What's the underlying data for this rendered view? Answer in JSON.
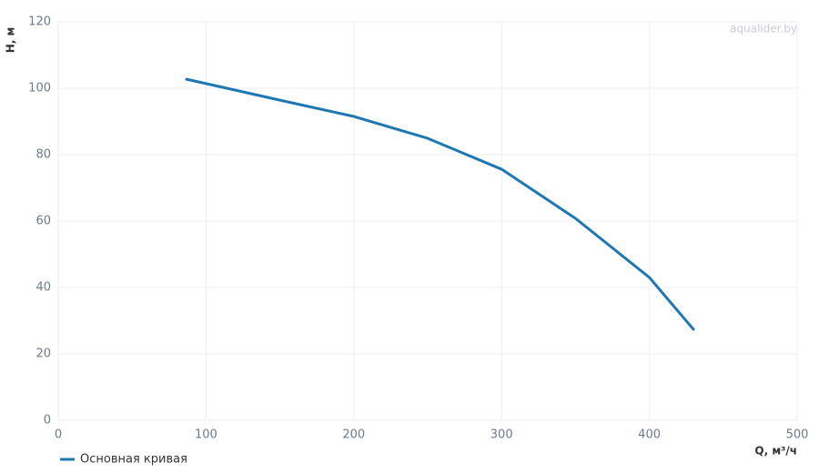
{
  "chart_data": {
    "type": "line",
    "watermark": "aqualider.by",
    "x_label": "Q, м³/ч",
    "y_label": "H, м",
    "x": [
      86.8,
      100,
      150,
      200,
      250,
      300,
      350,
      400,
      429.8
    ],
    "series": [
      {
        "name": "Основная кривая",
        "color": "#1f77b4",
        "values": [
          102.7,
          101.4,
          96.4,
          91.5,
          84.9,
          75.6,
          60.8,
          43.0,
          27.4
        ]
      }
    ],
    "xlim": [
      0,
      500
    ],
    "xticks": [
      0,
      100,
      200,
      300,
      400,
      500
    ],
    "ylim": [
      0,
      120
    ],
    "yticks": [
      0,
      20,
      40,
      60,
      80,
      100,
      120
    ],
    "grid": true,
    "legend": "bottom-left"
  }
}
